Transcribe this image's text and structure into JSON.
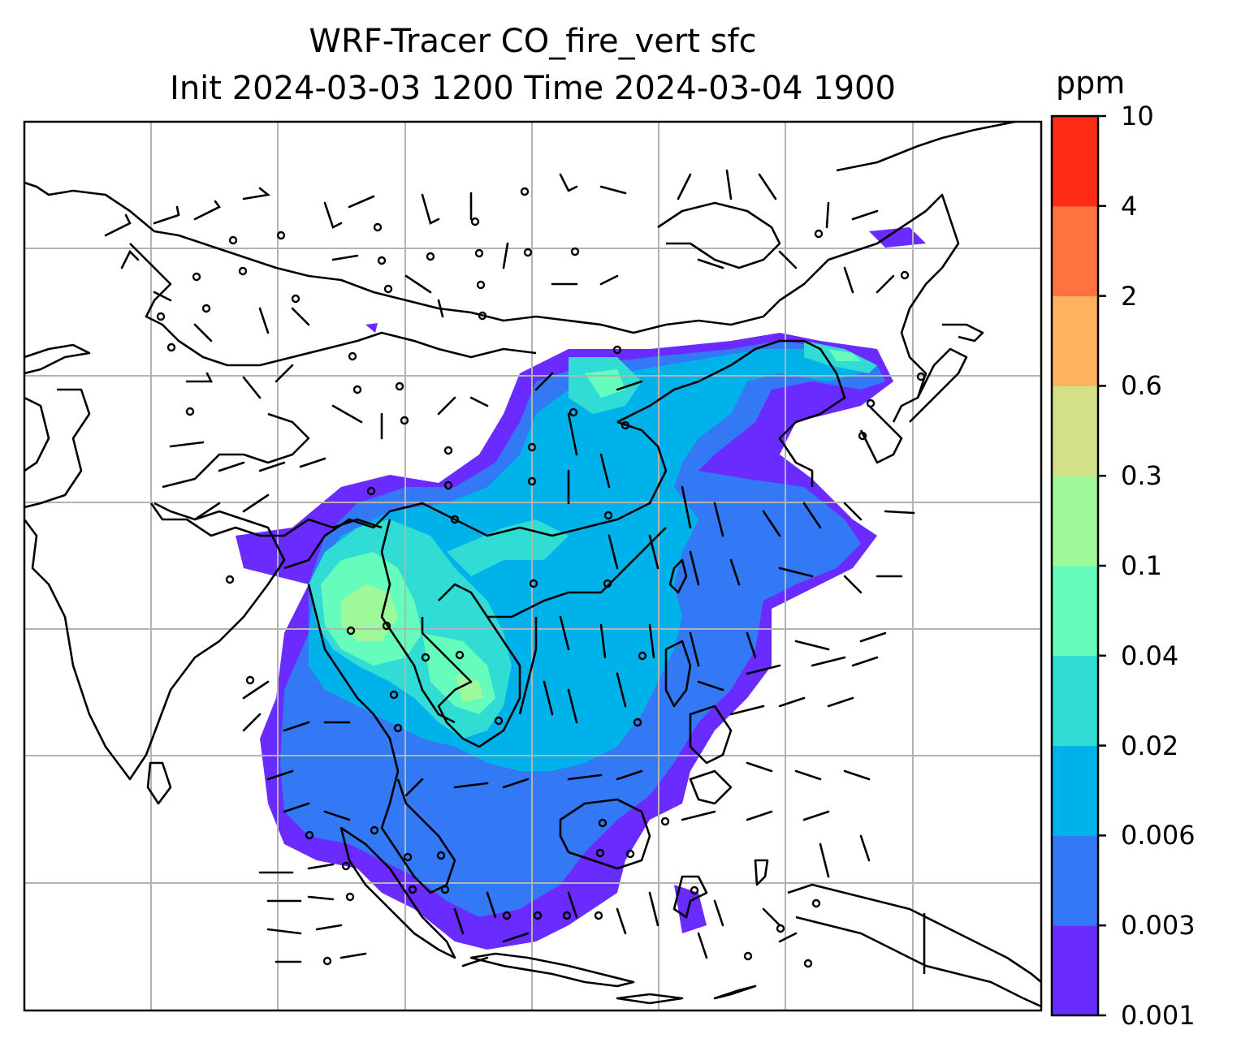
{
  "title": {
    "line1": "WRF-Tracer CO_fire_vert sfc",
    "line2": "Init 2024-03-03 1200 Time 2024-03-04 1900"
  },
  "colorbar": {
    "unit": "ppm",
    "levels": [
      "0.001",
      "0.003",
      "0.006",
      "0.02",
      "0.04",
      "0.1",
      "0.3",
      "0.6",
      "2",
      "4",
      "10"
    ],
    "colors": [
      "#6a2bff",
      "#3378f5",
      "#00b2ea",
      "#30dcd4",
      "#66fcbc",
      "#9efa98",
      "#d3e088",
      "#ffb260",
      "#ff7340",
      "#ff2c16"
    ]
  },
  "map": {
    "region": "South and Southeast Asia",
    "gridlines": true,
    "features": [
      "coastlines",
      "country borders",
      "wind barbs",
      "calm wind circles",
      "CO tracer shading"
    ]
  }
}
